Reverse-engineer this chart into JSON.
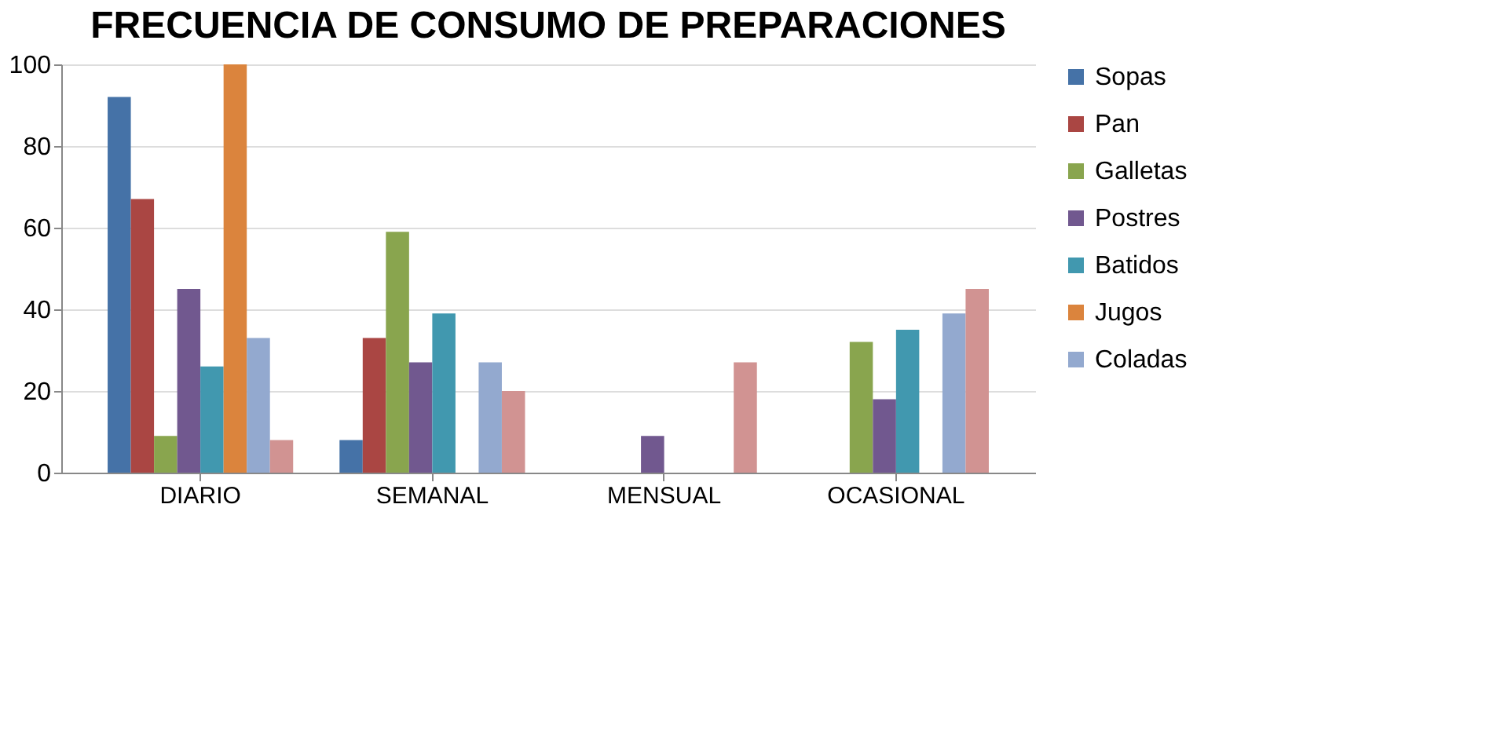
{
  "chart_data": {
    "type": "bar",
    "title": "FRECUENCIA DE CONSUMO DE PREPARACIONES",
    "categories": [
      "DIARIO",
      "SEMANAL",
      "MENSUAL",
      "OCASIONAL"
    ],
    "series": [
      {
        "name": "Sopas",
        "color": "#4572a7",
        "values": [
          92,
          8,
          0,
          0
        ]
      },
      {
        "name": "Pan",
        "color": "#aa4643",
        "values": [
          67,
          33,
          0,
          0
        ]
      },
      {
        "name": "Galletas",
        "color": "#89a54e",
        "values": [
          9,
          59,
          0,
          32
        ]
      },
      {
        "name": "Postres",
        "color": "#71588f",
        "values": [
          45,
          27,
          9,
          18
        ]
      },
      {
        "name": "Batidos",
        "color": "#4198af",
        "values": [
          26,
          39,
          0,
          35
        ]
      },
      {
        "name": "Jugos",
        "color": "#db843d",
        "values": [
          100,
          0,
          0,
          0
        ]
      },
      {
        "name": "Coladas",
        "color": "#93a9cf",
        "values": [
          33,
          27,
          0,
          39
        ]
      },
      {
        "color": "#d19392",
        "values": [
          8,
          20,
          27,
          45
        ]
      }
    ],
    "ylim": [
      0,
      100
    ],
    "yticks": [
      0,
      20,
      40,
      60,
      80,
      100
    ],
    "grid": "y",
    "legend": "right"
  }
}
